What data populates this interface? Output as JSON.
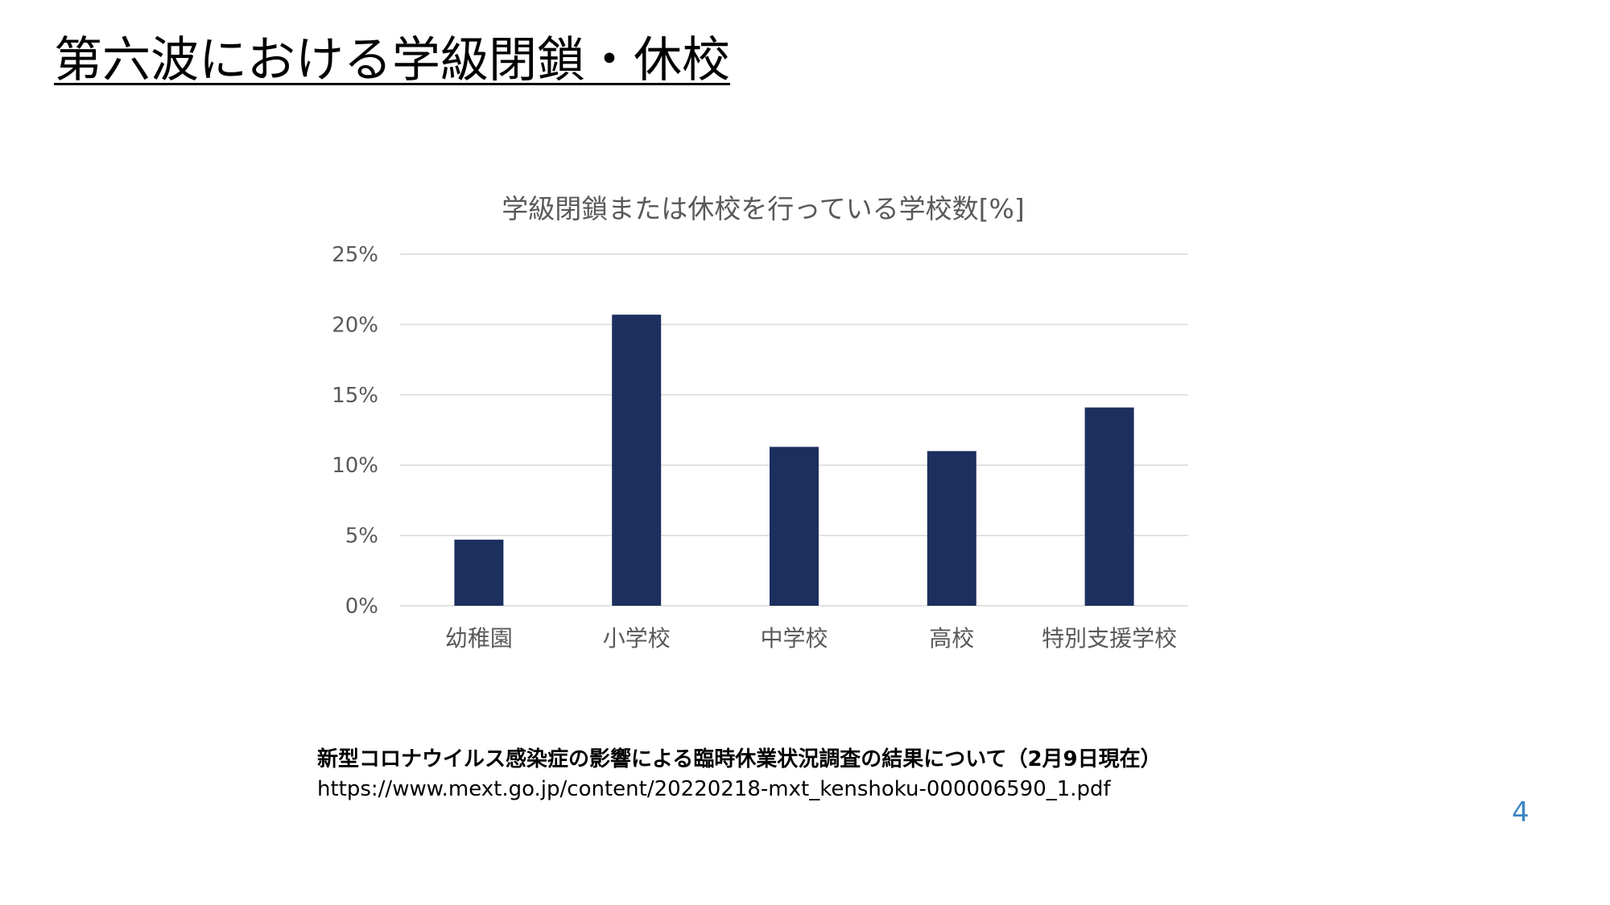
{
  "slide": {
    "title": "第六波における学級閉鎖・休校",
    "page_number": "4"
  },
  "source": {
    "title": "新型コロナウイルス感染症の影響による臨時休業状況調査の結果について（2月9日現在）",
    "url": "https://www.mext.go.jp/content/20220218-mxt_kenshoku-000006590_1.pdf"
  },
  "colors": {
    "bar": "#1c2f5e",
    "gridline": "#d9d9d9",
    "axis_text": "#595959",
    "page_number": "#3d85c6"
  },
  "chart_data": {
    "type": "bar",
    "title": "学級閉鎖または休校を行っている学校数[%]",
    "xlabel": "",
    "ylabel": "",
    "categories": [
      "幼稚園",
      "小学校",
      "中学校",
      "高校",
      "特別支援学校"
    ],
    "values": [
      4.7,
      20.7,
      11.3,
      11.0,
      14.1
    ],
    "ylim": [
      0,
      25
    ],
    "y_ticks": [
      0,
      5,
      10,
      15,
      20,
      25
    ],
    "y_tick_labels": [
      "0%",
      "5%",
      "10%",
      "15%",
      "20%",
      "25%"
    ],
    "grid": true,
    "legend": "none"
  }
}
